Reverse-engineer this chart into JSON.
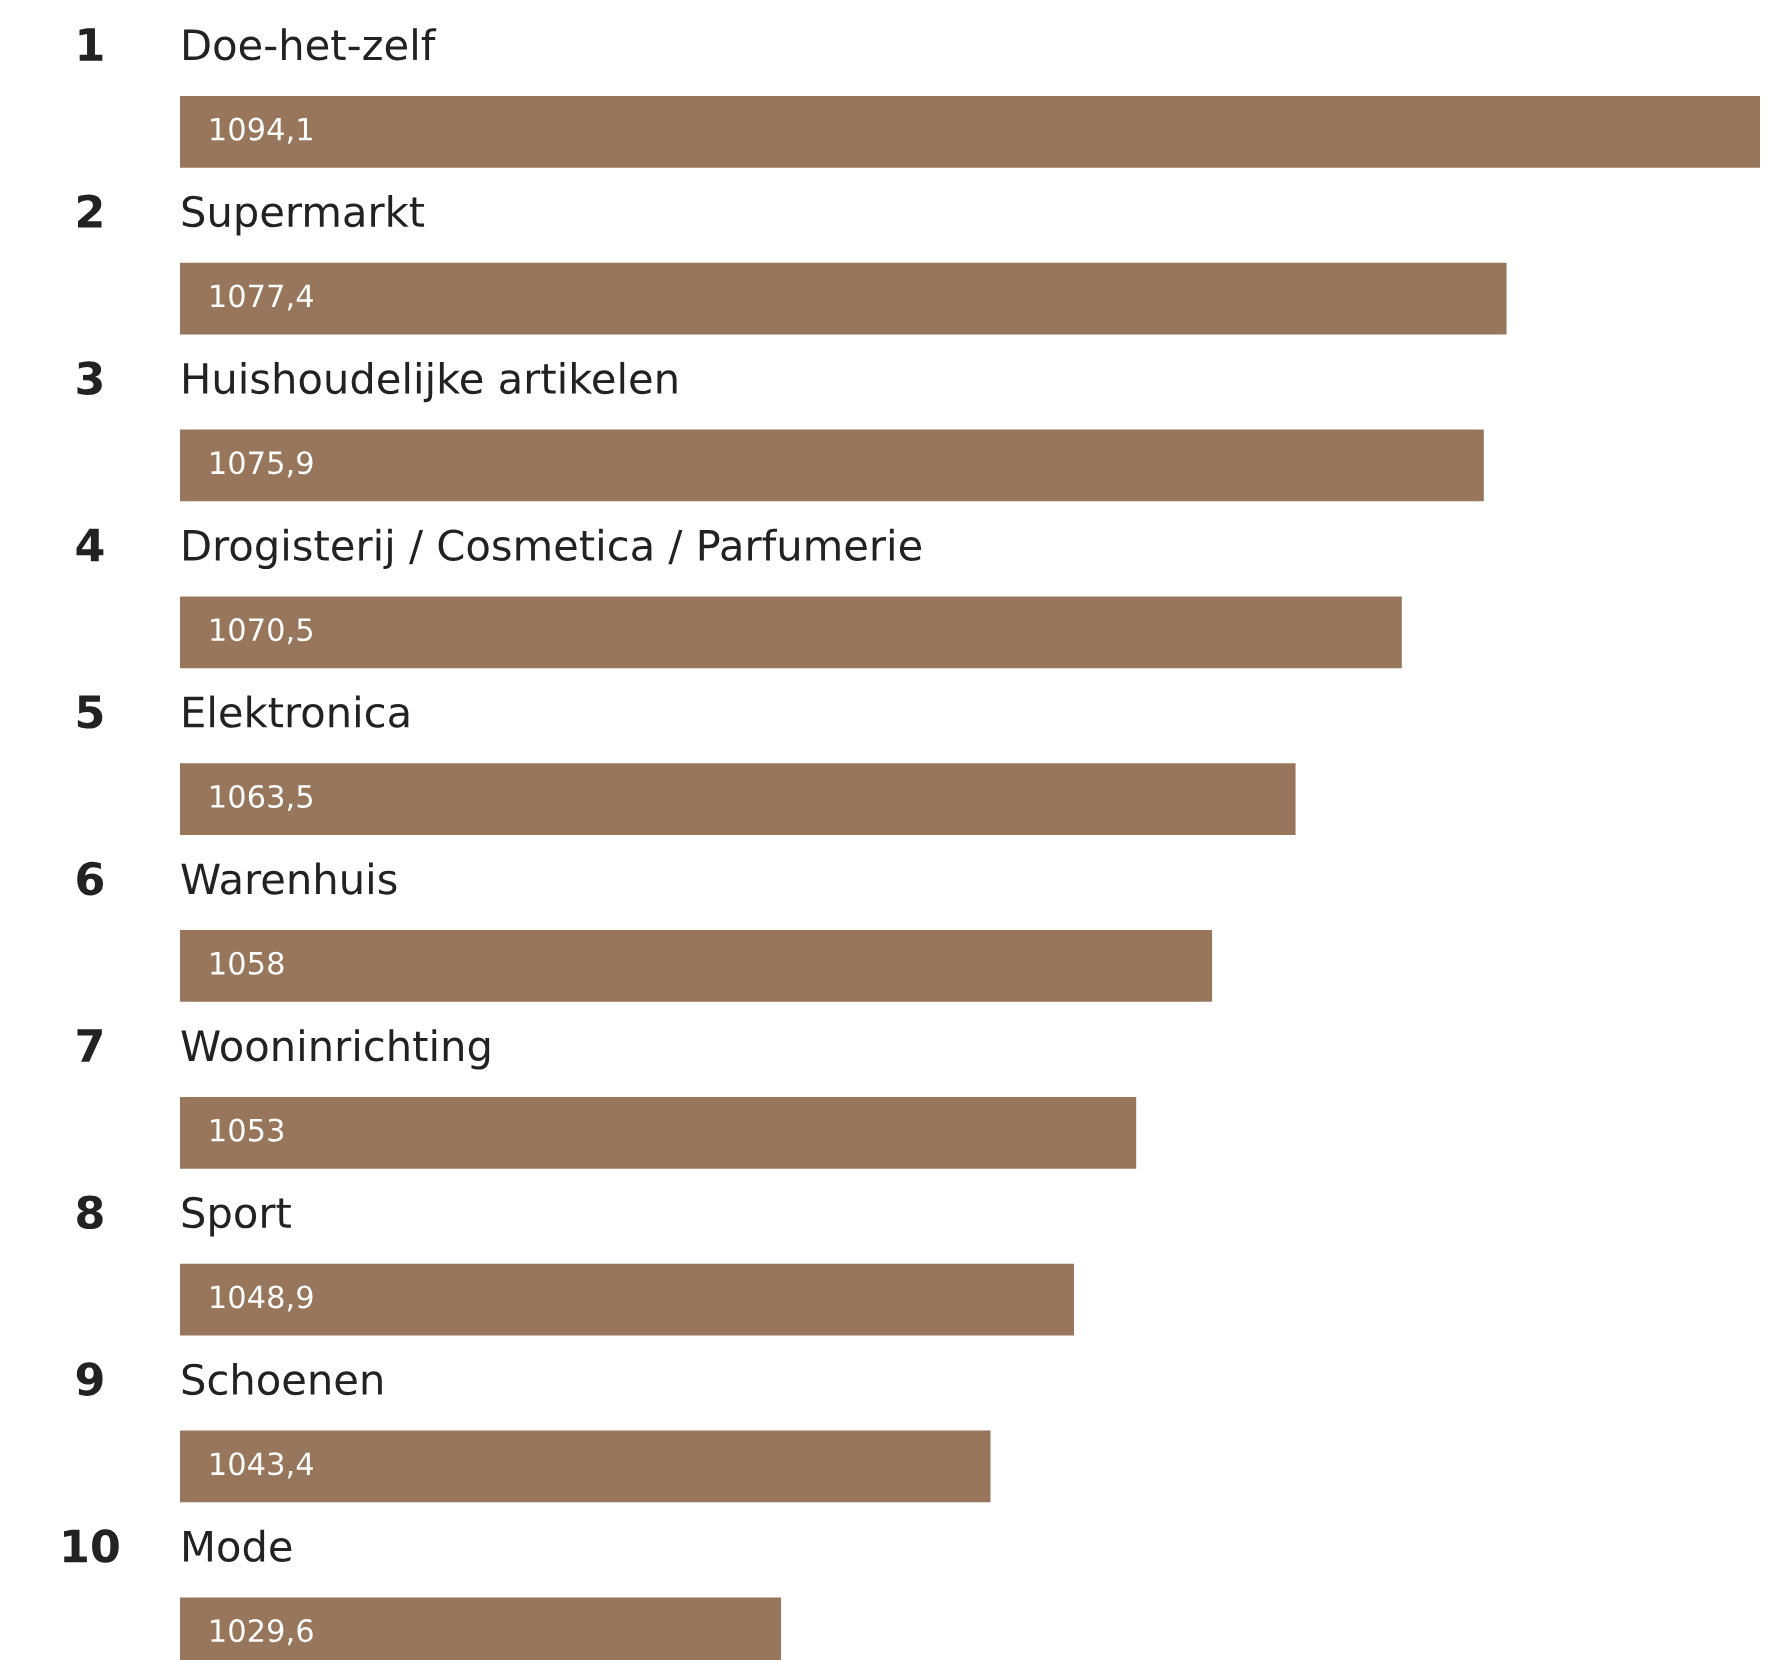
{
  "chart_data": {
    "type": "bar",
    "orientation": "horizontal",
    "categories": [
      "Doe-het-zelf",
      "Supermarkt",
      "Huishoudelijke artikelen",
      "Drogisterij / Cosmetica / Parfumerie",
      "Elektronica",
      "Warenhuis",
      "Wooninrichting",
      "Sport",
      "Schoenen",
      "Mode"
    ],
    "values": [
      1094.1,
      1077.4,
      1075.9,
      1070.5,
      1063.5,
      1058,
      1053,
      1048.9,
      1043.4,
      1029.6
    ],
    "value_labels": [
      "1094,1",
      "1077,4",
      "1075,9",
      "1070,5",
      "1063,5",
      "1058",
      "1053",
      "1048,9",
      "1043,4",
      "1029,6"
    ],
    "color": "#97765c",
    "xlim": [
      990,
      1094.1
    ],
    "tick_labels": false,
    "annotations": [
      "1",
      "2",
      "3",
      "4",
      "5",
      "6",
      "7",
      "8",
      "9",
      "10"
    ]
  }
}
